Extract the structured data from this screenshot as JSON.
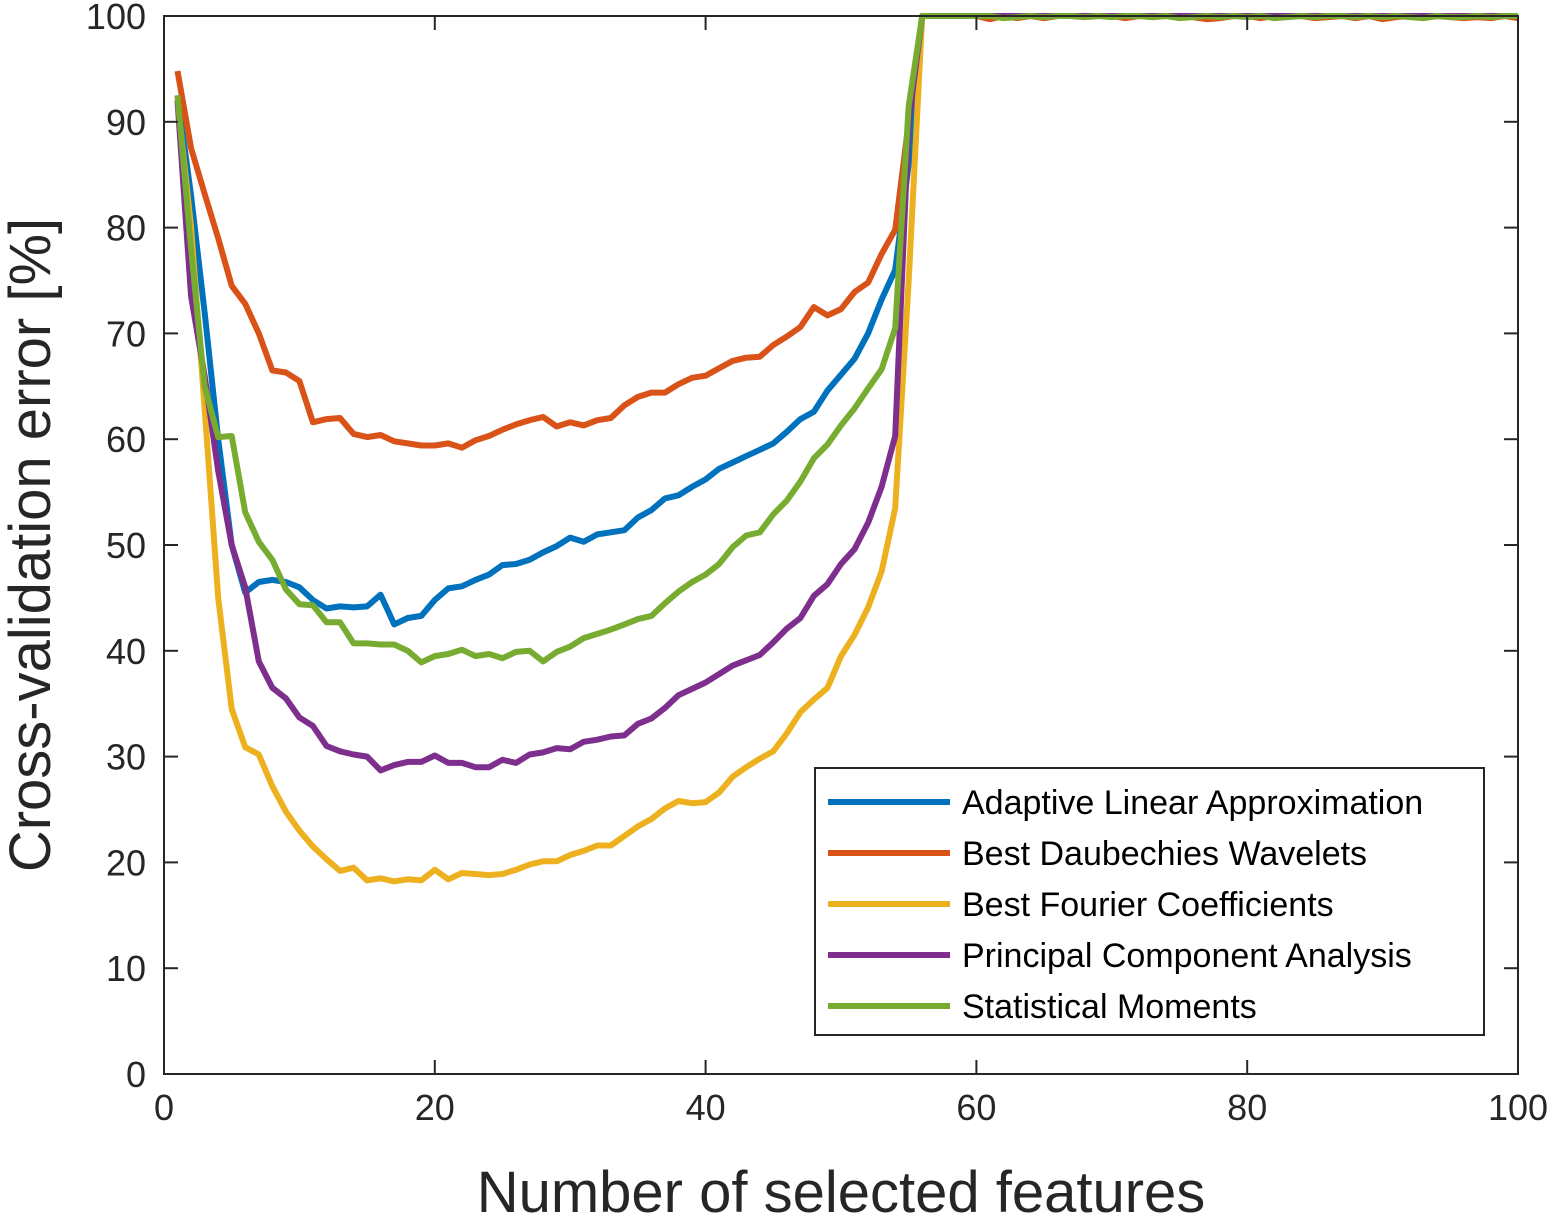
{
  "chart_data": {
    "type": "line",
    "title": "",
    "xlabel": "Number of selected features",
    "ylabel": "Cross-validation error [%]",
    "xlim": [
      0,
      100
    ],
    "ylim": [
      0,
      100
    ],
    "xticks": [
      0,
      20,
      40,
      60,
      80,
      100
    ],
    "yticks": [
      0,
      10,
      20,
      30,
      40,
      50,
      60,
      70,
      80,
      90,
      100
    ],
    "grid": false,
    "legend_position": "bottom-right",
    "x_start": 1,
    "series": [
      {
        "name": "Adaptive Linear Approximation",
        "color": "#0072BD",
        "values": [
          92.5,
          83,
          72,
          60,
          50,
          45.5,
          46.5,
          46.7,
          46.5,
          46,
          44.8,
          44,
          44.2,
          44.1,
          44.2,
          45.3,
          42.5,
          43.1,
          43.3,
          44.8,
          45.9,
          46.1,
          46.7,
          47.2,
          48.1,
          48.2,
          48.6,
          49.3,
          49.9,
          50.7,
          50.3,
          51,
          51.2,
          51.4,
          52.6,
          53.3,
          54.4,
          54.7,
          55.5,
          56.2,
          57.2,
          57.8,
          58.4,
          59,
          59.6,
          60.7,
          61.9,
          62.6,
          64.6,
          66.1,
          67.6,
          70,
          73.2,
          76,
          86,
          100,
          100,
          100,
          100,
          100,
          100,
          100,
          100,
          100,
          100,
          100,
          100,
          100,
          100,
          100,
          100,
          100,
          100,
          100,
          100,
          100,
          100,
          100,
          100,
          100,
          100,
          100,
          100,
          100,
          100,
          100,
          100,
          100,
          100,
          100,
          100,
          100,
          100,
          100,
          100,
          100,
          100,
          100,
          100,
          100
        ]
      },
      {
        "name": "Best Daubechies Wavelets",
        "color": "#D95319",
        "values": [
          94.8,
          87.5,
          83.2,
          79,
          74.5,
          72.8,
          70,
          66.5,
          66.3,
          65.5,
          61.6,
          61.9,
          62,
          60.5,
          60.2,
          60.4,
          59.8,
          59.6,
          59.4,
          59.4,
          59.6,
          59.2,
          59.9,
          60.3,
          60.9,
          61.4,
          61.8,
          62.1,
          61.2,
          61.6,
          61.3,
          61.8,
          62,
          63.2,
          64,
          64.4,
          64.4,
          65.2,
          65.8,
          66,
          66.7,
          67.4,
          67.7,
          67.8,
          68.9,
          69.7,
          70.6,
          72.5,
          71.7,
          72.3,
          73.9,
          74.8,
          77.5,
          79.8,
          90,
          100,
          100,
          100,
          100,
          100,
          99.7,
          100,
          99.8,
          100,
          99.8,
          100,
          100,
          99.9,
          100,
          100,
          99.8,
          100,
          99.9,
          100,
          100,
          99.9,
          99.7,
          99.8,
          100,
          100,
          99.8,
          100,
          100,
          100,
          99.8,
          99.9,
          100,
          99.8,
          100,
          99.7,
          99.9,
          100,
          99.8,
          100,
          99.9,
          99.8,
          99.9,
          99.8,
          100,
          99.8
        ]
      },
      {
        "name": "Best Fourier Coefficients",
        "color": "#EDB120",
        "values": [
          92,
          80,
          63,
          45,
          34.5,
          30.9,
          30.2,
          27.2,
          24.8,
          23,
          21.5,
          20.3,
          19.2,
          19.5,
          18.3,
          18.5,
          18.2,
          18.4,
          18.3,
          19.3,
          18.4,
          19,
          18.9,
          18.8,
          18.9,
          19.3,
          19.8,
          20.1,
          20.1,
          20.7,
          21.1,
          21.6,
          21.6,
          22.5,
          23.4,
          24.1,
          25.1,
          25.8,
          25.6,
          25.7,
          26.6,
          28.1,
          29,
          29.8,
          30.5,
          32.2,
          34.2,
          35.4,
          36.5,
          39.5,
          41.5,
          44.1,
          47.5,
          53.5,
          75,
          100,
          100,
          100,
          100,
          100,
          100,
          100,
          100,
          100,
          100,
          100,
          100,
          100,
          100,
          100,
          100,
          100,
          100,
          100,
          100,
          100,
          100,
          100,
          100,
          100,
          100,
          100,
          100,
          100,
          100,
          100,
          100,
          100,
          100,
          100,
          100,
          100,
          100,
          100,
          100,
          100,
          100,
          100,
          100,
          100
        ]
      },
      {
        "name": "Principal Component Analysis",
        "color": "#7E2F8E",
        "values": [
          92,
          73.5,
          66,
          57,
          50,
          46,
          39,
          36.5,
          35.5,
          33.7,
          32.9,
          31,
          30.5,
          30.2,
          30,
          28.7,
          29.2,
          29.5,
          29.5,
          30.1,
          29.4,
          29.4,
          29,
          29,
          29.7,
          29.4,
          30.2,
          30.4,
          30.8,
          30.7,
          31.4,
          31.6,
          31.9,
          32,
          33.1,
          33.6,
          34.6,
          35.8,
          36.4,
          37,
          37.8,
          38.6,
          39.1,
          39.6,
          40.8,
          42.1,
          43.1,
          45.2,
          46.3,
          48.2,
          49.6,
          52.1,
          55.5,
          60.3,
          90,
          100,
          100,
          100,
          100,
          100,
          100,
          100,
          100,
          100,
          100,
          100,
          100,
          100,
          100,
          100,
          100,
          100,
          100,
          100,
          100,
          100,
          100,
          100,
          100,
          100,
          100,
          100,
          100,
          100,
          100,
          100,
          100,
          100,
          100,
          100,
          100,
          100,
          100,
          100,
          100,
          100,
          100,
          100,
          100,
          100
        ]
      },
      {
        "name": "Statistical Moments",
        "color": "#77AC30",
        "values": [
          92.5,
          78,
          65,
          60.2,
          60.3,
          53.1,
          50.3,
          48.6,
          45.8,
          44.4,
          44.3,
          42.7,
          42.7,
          40.7,
          40.7,
          40.6,
          40.6,
          40,
          38.9,
          39.5,
          39.7,
          40.1,
          39.5,
          39.7,
          39.3,
          39.9,
          40,
          39,
          39.9,
          40.4,
          41.2,
          41.6,
          42,
          42.5,
          43,
          43.3,
          44.5,
          45.6,
          46.5,
          47.2,
          48.2,
          49.8,
          50.9,
          51.2,
          52.9,
          54.2,
          56,
          58.2,
          59.5,
          61.3,
          62.9,
          64.8,
          66.6,
          70.5,
          91.5,
          100,
          100,
          100,
          100,
          100,
          100,
          99.8,
          99.9,
          100,
          99.9,
          100,
          100,
          99.9,
          100,
          99.9,
          100,
          100,
          99.9,
          100,
          99.8,
          99.9,
          100,
          99.9,
          100,
          99.9,
          100,
          99.8,
          99.9,
          100,
          99.9,
          100,
          100,
          99.9,
          100,
          99.9,
          100,
          99.9,
          99.8,
          100,
          99.9,
          99.9,
          100,
          99.9,
          100,
          100
        ]
      }
    ]
  }
}
